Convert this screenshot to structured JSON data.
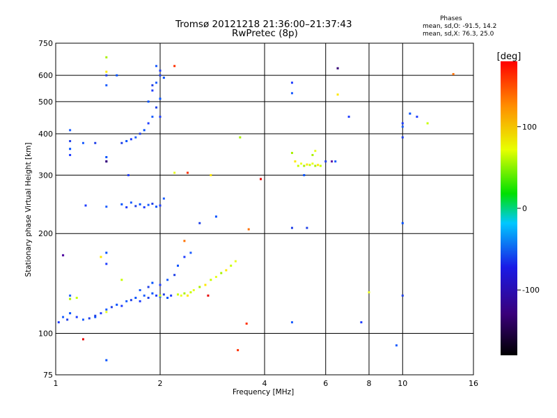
{
  "header": {
    "title_line1": "Tromsø 20121218 21:36:00–21:37:43",
    "title_line2": "RwPretec (8p)"
  },
  "phases_box": {
    "heading": "Phases",
    "line1": "mean, sd,O: -91.5, 14.2",
    "line2": "mean, sd,X:  76.3, 25.0"
  },
  "chart_data": {
    "type": "scatter",
    "x_scale": "log",
    "y_scale": "log",
    "xlabel": "Frequency [MHz]",
    "ylabel": "Stationary phase Virtual Height [km]",
    "xlim": [
      1,
      16
    ],
    "ylim": [
      75,
      750
    ],
    "x_ticks": [
      1,
      2,
      4,
      6,
      8,
      10,
      16
    ],
    "y_ticks": [
      75,
      100,
      200,
      300,
      400,
      500,
      600,
      750
    ],
    "grid": true,
    "colorbar": {
      "label": "[deg]",
      "range": [
        -180,
        180
      ],
      "ticks": [
        100,
        0,
        -100
      ],
      "colors": [
        "#000000",
        "#3a007a",
        "#1a1ae6",
        "#00c8ff",
        "#00e000",
        "#e8ff00",
        "#ff8c00",
        "#ff0000"
      ]
    },
    "series": [
      {
        "color_hint": "blue",
        "points": [
          [
            1.02,
            108
          ],
          [
            1.05,
            112
          ],
          [
            1.08,
            110
          ],
          [
            1.1,
            115
          ],
          [
            1.15,
            112
          ],
          [
            1.2,
            110
          ],
          [
            1.25,
            111
          ],
          [
            1.3,
            112
          ],
          [
            1.35,
            115
          ],
          [
            1.4,
            118
          ],
          [
            1.45,
            120
          ],
          [
            1.5,
            122
          ],
          [
            1.55,
            121
          ],
          [
            1.6,
            125
          ],
          [
            1.65,
            126
          ],
          [
            1.7,
            128
          ],
          [
            1.75,
            125
          ],
          [
            1.8,
            130
          ],
          [
            1.85,
            128
          ],
          [
            1.9,
            132
          ],
          [
            1.95,
            130
          ],
          [
            2.0,
            129
          ],
          [
            2.05,
            131
          ],
          [
            2.1,
            128
          ],
          [
            2.15,
            130
          ],
          [
            1.75,
            135
          ],
          [
            1.85,
            138
          ],
          [
            1.9,
            142
          ],
          [
            2.0,
            140
          ],
          [
            2.1,
            145
          ],
          [
            2.2,
            150
          ],
          [
            2.25,
            160
          ],
          [
            2.35,
            170
          ],
          [
            2.45,
            175
          ],
          [
            2.6,
            215
          ],
          [
            1.55,
            245
          ],
          [
            1.6,
            240
          ],
          [
            1.65,
            248
          ],
          [
            1.7,
            242
          ],
          [
            1.75,
            245
          ],
          [
            1.8,
            240
          ],
          [
            1.85,
            244
          ],
          [
            1.9,
            246
          ],
          [
            1.95,
            241
          ],
          [
            2.0,
            243
          ],
          [
            2.05,
            255
          ],
          [
            1.55,
            375
          ],
          [
            1.6,
            380
          ],
          [
            1.65,
            385
          ],
          [
            1.7,
            390
          ],
          [
            1.75,
            400
          ],
          [
            1.8,
            410
          ],
          [
            1.85,
            430
          ],
          [
            1.9,
            450
          ],
          [
            1.95,
            480
          ],
          [
            2.0,
            510
          ],
          [
            1.9,
            540
          ],
          [
            1.95,
            570
          ],
          [
            2.0,
            600
          ],
          [
            2.05,
            590
          ],
          [
            2.0,
            620
          ],
          [
            1.95,
            640
          ],
          [
            1.9,
            560
          ],
          [
            1.85,
            500
          ],
          [
            2.0,
            450
          ],
          [
            1.1,
            410
          ],
          [
            1.1,
            380
          ],
          [
            1.1,
            360
          ],
          [
            1.1,
            345
          ],
          [
            1.2,
            375
          ],
          [
            1.3,
            375
          ],
          [
            1.4,
            340
          ],
          [
            1.4,
            330
          ],
          [
            1.4,
            560
          ],
          [
            1.4,
            600
          ],
          [
            1.5,
            600
          ],
          [
            1.22,
            243
          ],
          [
            1.4,
            241
          ],
          [
            1.05,
            172
          ],
          [
            1.4,
            175
          ],
          [
            1.4,
            162
          ],
          [
            1.1,
            130
          ],
          [
            1.3,
            113
          ],
          [
            1.4,
            83
          ],
          [
            4.8,
            570
          ],
          [
            4.8,
            530
          ],
          [
            4.8,
            208
          ],
          [
            6.5,
            630
          ],
          [
            7.0,
            450
          ],
          [
            6.4,
            330
          ],
          [
            6.0,
            330
          ],
          [
            5.2,
            300
          ],
          [
            7.6,
            108
          ],
          [
            9.6,
            92
          ],
          [
            10.0,
            130
          ],
          [
            10.0,
            215
          ],
          [
            10.0,
            430
          ],
          [
            10.0,
            420
          ],
          [
            10.0,
            390
          ],
          [
            10.5,
            460
          ],
          [
            11.0,
            450
          ],
          [
            4.8,
            108
          ],
          [
            5.3,
            208
          ],
          [
            2.9,
            225
          ],
          [
            1.62,
            300
          ]
        ]
      },
      {
        "color_hint": "yellow-green",
        "points": [
          [
            2.25,
            131
          ],
          [
            2.3,
            130
          ],
          [
            2.35,
            132
          ],
          [
            2.4,
            130
          ],
          [
            2.45,
            133
          ],
          [
            2.5,
            135
          ],
          [
            2.6,
            138
          ],
          [
            2.7,
            140
          ],
          [
            2.8,
            145
          ],
          [
            2.9,
            148
          ],
          [
            3.0,
            152
          ],
          [
            3.1,
            155
          ],
          [
            3.2,
            160
          ],
          [
            3.3,
            165
          ],
          [
            1.1,
            127
          ],
          [
            1.35,
            170
          ],
          [
            1.55,
            145
          ],
          [
            1.4,
            116
          ],
          [
            4.8,
            350
          ],
          [
            4.9,
            330
          ],
          [
            5.0,
            320
          ],
          [
            5.1,
            325
          ],
          [
            5.2,
            320
          ],
          [
            5.3,
            323
          ],
          [
            5.4,
            322
          ],
          [
            5.5,
            325
          ],
          [
            5.6,
            320
          ],
          [
            5.7,
            322
          ],
          [
            5.8,
            320
          ],
          [
            5.6,
            355
          ],
          [
            5.5,
            345
          ],
          [
            6.5,
            525
          ],
          [
            2.0,
            130
          ],
          [
            2.2,
            305
          ],
          [
            1.4,
            680
          ],
          [
            1.4,
            615
          ],
          [
            11.8,
            430
          ],
          [
            8.0,
            133
          ],
          [
            3.4,
            390
          ],
          [
            2.8,
            300
          ],
          [
            1.15,
            128
          ]
        ]
      },
      {
        "color_hint": "red-orange",
        "points": [
          [
            2.2,
            640
          ],
          [
            2.35,
            190
          ],
          [
            2.75,
            130
          ],
          [
            3.35,
            89
          ],
          [
            3.6,
            206
          ],
          [
            3.9,
            292
          ],
          [
            3.55,
            107
          ],
          [
            14.0,
            605
          ],
          [
            1.2,
            96
          ],
          [
            2.4,
            305
          ]
        ]
      },
      {
        "color_hint": "purple",
        "points": [
          [
            1.05,
            172
          ],
          [
            6.5,
            630
          ],
          [
            6.25,
            330
          ],
          [
            1.4,
            330
          ]
        ]
      }
    ]
  }
}
